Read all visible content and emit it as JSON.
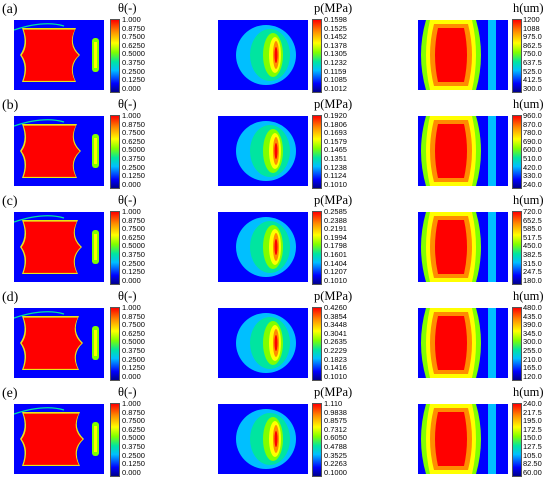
{
  "rows": [
    {
      "label": "(a)",
      "theta": {
        "title": "θ(-)",
        "ticks": [
          "1.000",
          "0.8750",
          "0.7500",
          "0.6250",
          "0.5000",
          "0.3750",
          "0.2500",
          "0.1250",
          "0.000"
        ]
      },
      "p": {
        "title": "p(MPa)",
        "ticks": [
          "0.1598",
          "0.1525",
          "0.1452",
          "0.1378",
          "0.1305",
          "0.1232",
          "0.1159",
          "0.1085",
          "0.1012"
        ]
      },
      "h": {
        "title": "h(um)",
        "ticks": [
          "1200",
          "1088",
          "975.0",
          "862.5",
          "750.0",
          "637.5",
          "525.0",
          "412.5",
          "300.0"
        ]
      }
    },
    {
      "label": "(b)",
      "theta": {
        "title": "θ(-)",
        "ticks": [
          "1.000",
          "0.8750",
          "0.7500",
          "0.6250",
          "0.5000",
          "0.3750",
          "0.2500",
          "0.1250",
          "0.000"
        ]
      },
      "p": {
        "title": "p(MPa)",
        "ticks": [
          "0.1920",
          "0.1806",
          "0.1693",
          "0.1579",
          "0.1465",
          "0.1351",
          "0.1238",
          "0.1124",
          "0.1010"
        ]
      },
      "h": {
        "title": "h(um)",
        "ticks": [
          "960.0",
          "870.0",
          "780.0",
          "690.0",
          "600.0",
          "510.0",
          "420.0",
          "330.0",
          "240.0"
        ]
      }
    },
    {
      "label": "(c)",
      "theta": {
        "title": "θ(-)",
        "ticks": [
          "1.000",
          "0.8750",
          "0.7500",
          "0.6250",
          "0.5000",
          "0.3750",
          "0.2500",
          "0.1250",
          "0.000"
        ]
      },
      "p": {
        "title": "p(MPa)",
        "ticks": [
          "0.2585",
          "0.2388",
          "0.2191",
          "0.1994",
          "0.1798",
          "0.1601",
          "0.1404",
          "0.1207",
          "0.1010"
        ]
      },
      "h": {
        "title": "h(um)",
        "ticks": [
          "720.0",
          "652.5",
          "585.0",
          "517.5",
          "450.0",
          "382.5",
          "315.0",
          "247.5",
          "180.0"
        ]
      }
    },
    {
      "label": "(d)",
      "theta": {
        "title": "θ(-)",
        "ticks": [
          "1.000",
          "0.8750",
          "0.7500",
          "0.6250",
          "0.5000",
          "0.3750",
          "0.2500",
          "0.1250",
          "0.000"
        ]
      },
      "p": {
        "title": "p(MPa)",
        "ticks": [
          "0.4260",
          "0.3854",
          "0.3448",
          "0.3041",
          "0.2635",
          "0.2229",
          "0.1823",
          "0.1416",
          "0.1010"
        ]
      },
      "h": {
        "title": "h(um)",
        "ticks": [
          "480.0",
          "435.0",
          "390.0",
          "345.0",
          "300.0",
          "255.0",
          "210.0",
          "165.0",
          "120.0"
        ]
      }
    },
    {
      "label": "(e)",
      "theta": {
        "title": "θ(-)",
        "ticks": [
          "1.000",
          "0.8750",
          "0.7500",
          "0.6250",
          "0.5000",
          "0.3750",
          "0.2500",
          "0.1250",
          "0.000"
        ]
      },
      "p": {
        "title": "p(MPa)",
        "ticks": [
          "1.110",
          "0.9838",
          "0.8575",
          "0.7312",
          "0.6050",
          "0.4788",
          "0.3525",
          "0.2263",
          "0.1000"
        ]
      },
      "h": {
        "title": "h(um)",
        "ticks": [
          "240.0",
          "217.5",
          "195.0",
          "172.5",
          "150.0",
          "127.5",
          "105.0",
          "82.50",
          "60.00"
        ]
      }
    }
  ],
  "colormap": [
    "#00008b",
    "#0000ff",
    "#00bfff",
    "#00e5a0",
    "#7fff00",
    "#ffff00",
    "#ff8c00",
    "#ff0000"
  ]
}
